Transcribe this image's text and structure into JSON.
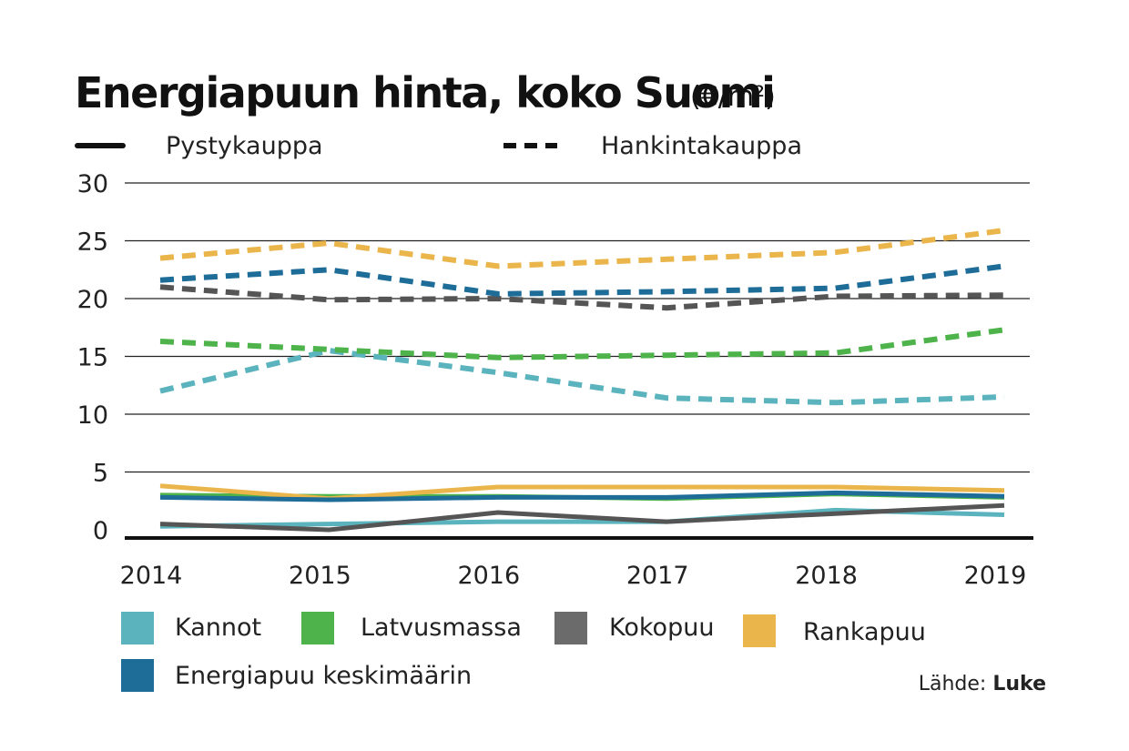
{
  "chart_data": {
    "type": "line",
    "title": "Energiapuun hinta, koko Suomi",
    "unit": "(€/m²)",
    "x": [
      "2014",
      "2015",
      "2016",
      "2017",
      "2018",
      "2019"
    ],
    "ylim": [
      0,
      30
    ],
    "yticks": [
      "0",
      "5",
      "10",
      "15",
      "20",
      "25",
      "30"
    ],
    "grid": true,
    "line_styles": [
      {
        "name": "Pystykauppa",
        "dash": "solid"
      },
      {
        "name": "Hankintakauppa",
        "dash": "dashed"
      }
    ],
    "categories_legend": [
      {
        "name": "Kannot",
        "color": "#5bb3bd"
      },
      {
        "name": "Latvusmassa",
        "color": "#4db34a"
      },
      {
        "name": "Kokopuu",
        "color": "#6b6b6b"
      },
      {
        "name": "Rankapuu",
        "color": "#eab54a"
      },
      {
        "name": "Energiapuu keskimäärin",
        "color": "#1e6c98"
      }
    ],
    "series": [
      {
        "category": "Kannot",
        "style": "Hankintakauppa",
        "color": "#5bb3bd",
        "values": [
          12.0,
          15.5,
          13.6,
          11.4,
          11.0,
          11.5
        ]
      },
      {
        "category": "Latvusmassa",
        "style": "Hankintakauppa",
        "color": "#4db34a",
        "values": [
          16.3,
          15.6,
          14.9,
          15.1,
          15.3,
          17.3
        ]
      },
      {
        "category": "Kokopuu",
        "style": "Hankintakauppa",
        "color": "#555555",
        "values": [
          21.0,
          19.9,
          20.0,
          19.2,
          20.2,
          20.3
        ]
      },
      {
        "category": "Energiapuu keskimäärin",
        "style": "Hankintakauppa",
        "color": "#1e6c98",
        "values": [
          21.6,
          22.5,
          20.4,
          20.6,
          20.9,
          22.8
        ]
      },
      {
        "category": "Rankapuu",
        "style": "Hankintakauppa",
        "color": "#eab54a",
        "values": [
          23.5,
          24.8,
          22.8,
          23.4,
          24.0,
          25.9
        ]
      },
      {
        "category": "Kannot",
        "style": "Pystykauppa",
        "color": "#5bb3bd",
        "values": [
          0.3,
          0.5,
          0.7,
          0.7,
          1.7,
          1.3
        ]
      },
      {
        "category": "Latvusmassa",
        "style": "Pystykauppa",
        "color": "#4db34a",
        "values": [
          3.0,
          2.9,
          2.9,
          2.7,
          3.1,
          2.8
        ]
      },
      {
        "category": "Kokopuu",
        "style": "Pystykauppa",
        "color": "#555555",
        "values": [
          0.5,
          0.0,
          1.5,
          0.7,
          1.4,
          2.1
        ]
      },
      {
        "category": "Rankapuu",
        "style": "Pystykauppa",
        "color": "#eab54a",
        "values": [
          3.8,
          2.7,
          3.7,
          3.7,
          3.7,
          3.4
        ]
      },
      {
        "category": "Energiapuu keskimäärin",
        "style": "Pystykauppa",
        "color": "#1e6c98",
        "values": [
          2.8,
          2.6,
          2.8,
          2.8,
          3.2,
          2.9
        ]
      }
    ],
    "source_label": "Lähde:",
    "source_name": "Luke"
  }
}
